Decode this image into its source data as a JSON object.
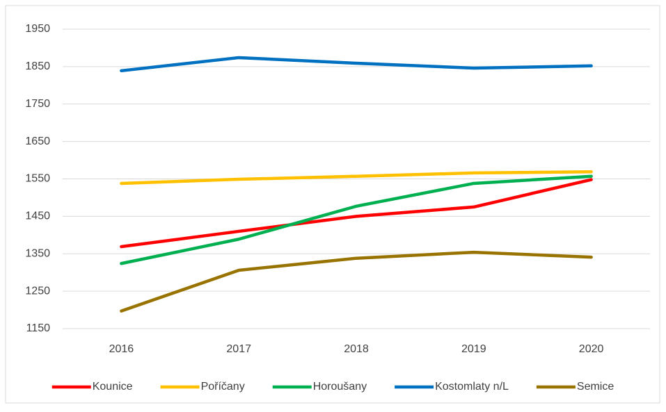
{
  "chart_data": {
    "type": "line",
    "categories": [
      "2016",
      "2017",
      "2018",
      "2019",
      "2020"
    ],
    "series": [
      {
        "name": "Kounice",
        "color": "#ff0000",
        "values": [
          1369,
          1410,
          1450,
          1475,
          1548
        ]
      },
      {
        "name": "Poříčany",
        "color": "#ffc000",
        "values": [
          1538,
          1549,
          1557,
          1566,
          1569
        ]
      },
      {
        "name": "Horoušany",
        "color": "#00b050",
        "values": [
          1324,
          1389,
          1477,
          1538,
          1557
        ]
      },
      {
        "name": "Kostomlaty n/L",
        "color": "#0070c0",
        "values": [
          1839,
          1874,
          1859,
          1846,
          1852
        ]
      },
      {
        "name": "Semice",
        "color": "#997300",
        "values": [
          1197,
          1306,
          1338,
          1354,
          1341
        ]
      }
    ],
    "ylim": [
      1150,
      1950
    ],
    "yticks": [
      1150,
      1250,
      1350,
      1450,
      1550,
      1650,
      1750,
      1850,
      1950
    ],
    "grid": true,
    "legend": "bottom"
  }
}
